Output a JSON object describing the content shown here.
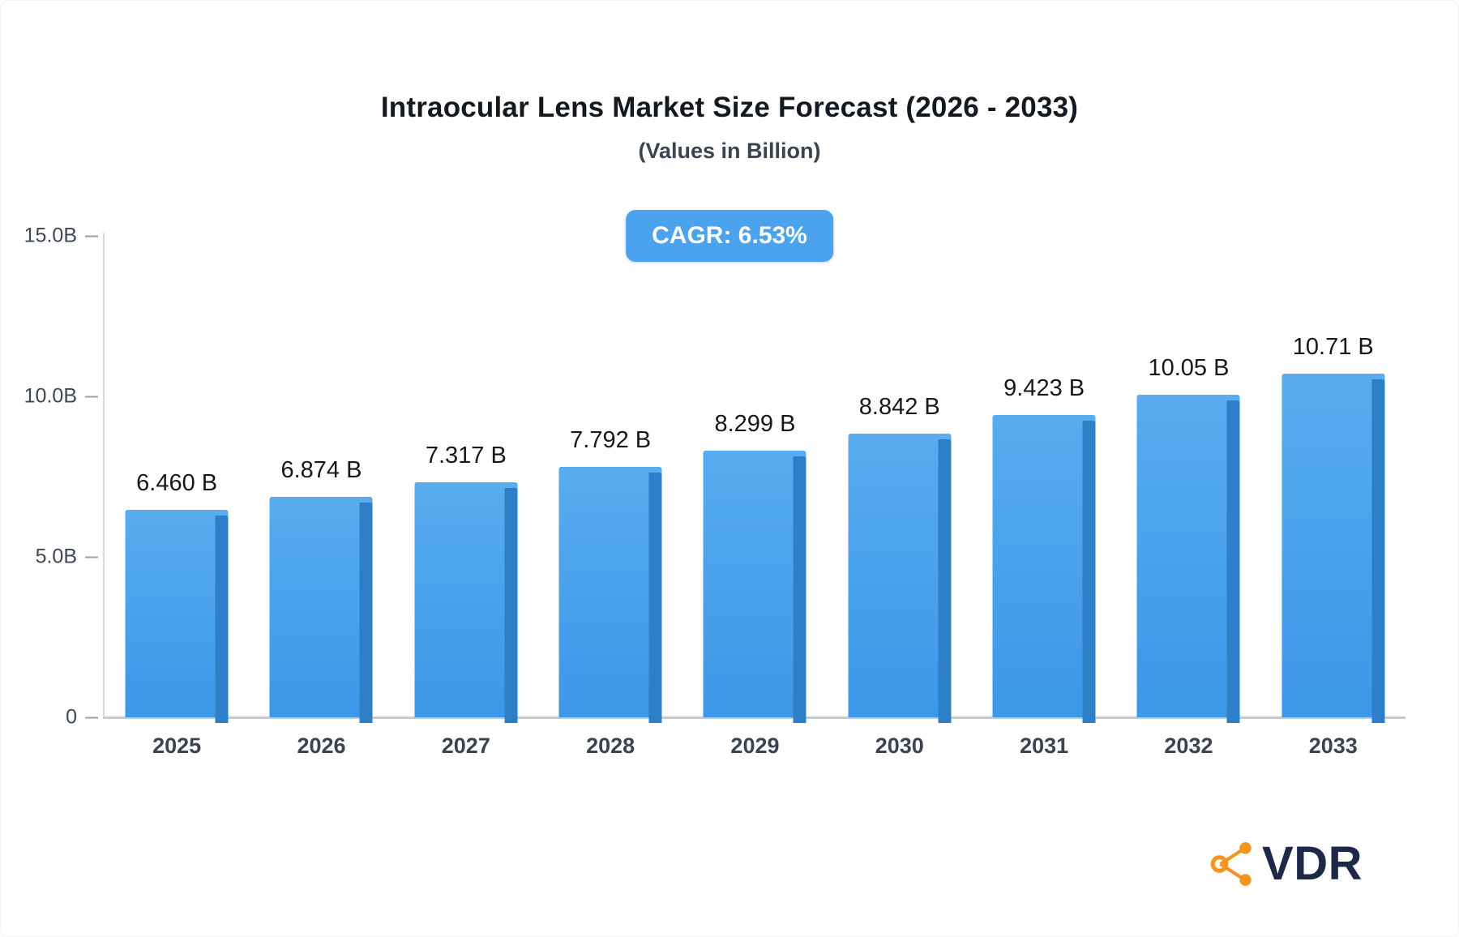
{
  "header": {
    "title": "Intraocular Lens Market Size Forecast (2026 - 2033)",
    "subtitle": "(Values in Billion)"
  },
  "badge": {
    "label": "CAGR: 6.53%",
    "background_color": "#4BA2EE",
    "text_color": "#ffffff"
  },
  "chart_data": {
    "type": "bar",
    "title": "Intraocular Lens Market Size Forecast (2026 - 2033)",
    "subtitle": "(Values in Billion)",
    "cagr": "6.53%",
    "categories": [
      "2025",
      "2026",
      "2027",
      "2028",
      "2029",
      "2030",
      "2031",
      "2032",
      "2033"
    ],
    "values": [
      6.46,
      6.874,
      7.317,
      7.792,
      8.299,
      8.842,
      9.423,
      10.05,
      10.71
    ],
    "value_labels": [
      "6.460 B",
      "6.874 B",
      "7.317 B",
      "7.792 B",
      "8.299 B",
      "8.842 B",
      "9.423 B",
      "10.05 B",
      "10.71 B"
    ],
    "xlabel": "",
    "ylabel": "",
    "ylim": [
      0,
      15
    ],
    "yticks": [
      {
        "value": 0,
        "label": "0"
      },
      {
        "value": 5,
        "label": "5.0B"
      },
      {
        "value": 10,
        "label": "10.0B"
      },
      {
        "value": 15,
        "label": "15.0B"
      }
    ],
    "grid": false,
    "legend": false,
    "bar_color_top": "#58ACEF",
    "bar_color_bottom": "#3D97E8",
    "bar_side_color": "#2D80C8"
  },
  "logo": {
    "text": "VDR",
    "icon": "network-nodes-icon",
    "icon_color": "#F7941D",
    "text_color": "#1E2947"
  }
}
